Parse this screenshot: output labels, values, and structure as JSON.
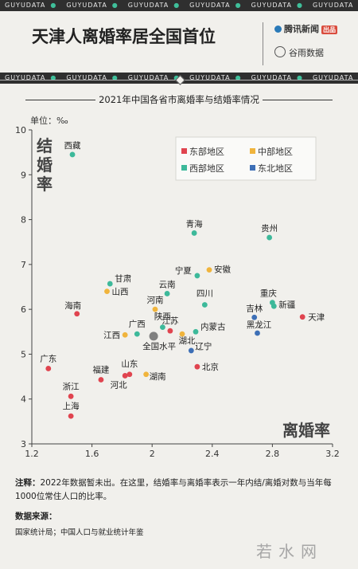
{
  "brand_band": [
    "GUYUDATA",
    "GUYUDATA",
    "GUYUDATA",
    "GUYUDATA",
    "GUYUDATA",
    "GUYUDATA"
  ],
  "header": {
    "title": "天津人离婚率居全国首位",
    "logo_tencent": "腾讯新闻",
    "logo_tencent_tag": "出品",
    "logo_guyu": "谷雨数据"
  },
  "colors": {
    "east": "#e0444f",
    "central": "#f0b43c",
    "west": "#3db99a",
    "northeast": "#3d6fb6",
    "national": "#808080"
  },
  "chart_data": {
    "type": "scatter",
    "title": "2021年中国各省市离婚率与结婚率情况",
    "unit": "单位：‰",
    "xlabel": "离婚率",
    "ylabel": "结婚率",
    "xlim": [
      1.2,
      3.2
    ],
    "ylim": [
      3,
      10
    ],
    "xticks": [
      "1.2",
      "1.6",
      "2",
      "2.4",
      "2.8",
      "3.2"
    ],
    "yticks": [
      "3",
      "4",
      "5",
      "6",
      "7",
      "8",
      "9",
      "10"
    ],
    "legend_position": "top-right",
    "legend": [
      {
        "key": "east",
        "label": "东部地区"
      },
      {
        "key": "central",
        "label": "中部地区"
      },
      {
        "key": "west",
        "label": "西部地区"
      },
      {
        "key": "northeast",
        "label": "东北地区"
      }
    ],
    "points": [
      {
        "name": "西藏",
        "x": 1.47,
        "y": 9.45,
        "region": "west"
      },
      {
        "name": "青海",
        "x": 2.28,
        "y": 7.7,
        "region": "west"
      },
      {
        "name": "贵州",
        "x": 2.78,
        "y": 7.6,
        "region": "west"
      },
      {
        "name": "宁夏",
        "x": 2.3,
        "y": 6.75,
        "region": "west"
      },
      {
        "name": "安徽",
        "x": 2.38,
        "y": 6.88,
        "region": "central"
      },
      {
        "name": "甘肃",
        "x": 1.72,
        "y": 6.57,
        "region": "west"
      },
      {
        "name": "山西",
        "x": 1.7,
        "y": 6.4,
        "region": "central"
      },
      {
        "name": "云南",
        "x": 2.1,
        "y": 6.35,
        "region": "west"
      },
      {
        "name": "河南",
        "x": 2.02,
        "y": 6.0,
        "region": "central"
      },
      {
        "name": "四川",
        "x": 2.35,
        "y": 6.1,
        "region": "west"
      },
      {
        "name": "重庆",
        "x": 2.8,
        "y": 6.15,
        "region": "west"
      },
      {
        "name": "新疆",
        "x": 2.81,
        "y": 6.07,
        "region": "west"
      },
      {
        "name": "海南",
        "x": 1.5,
        "y": 5.9,
        "region": "east"
      },
      {
        "name": "吉林",
        "x": 2.68,
        "y": 5.82,
        "region": "northeast"
      },
      {
        "name": "天津",
        "x": 3.0,
        "y": 5.83,
        "region": "east"
      },
      {
        "name": "陕西",
        "x": 2.07,
        "y": 5.6,
        "region": "west"
      },
      {
        "name": "广西",
        "x": 1.9,
        "y": 5.45,
        "region": "west"
      },
      {
        "name": "江苏",
        "x": 2.12,
        "y": 5.52,
        "region": "east"
      },
      {
        "name": "内蒙古",
        "x": 2.29,
        "y": 5.5,
        "region": "west"
      },
      {
        "name": "黑龙江",
        "x": 2.7,
        "y": 5.47,
        "region": "northeast"
      },
      {
        "name": "江西",
        "x": 1.82,
        "y": 5.43,
        "region": "central"
      },
      {
        "name": "全国水平",
        "x": 2.01,
        "y": 5.4,
        "region": "national"
      },
      {
        "name": "湖北",
        "x": 2.2,
        "y": 5.45,
        "region": "central"
      },
      {
        "name": "辽宁",
        "x": 2.26,
        "y": 5.08,
        "region": "northeast"
      },
      {
        "name": "北京",
        "x": 2.3,
        "y": 4.72,
        "region": "east"
      },
      {
        "name": "广东",
        "x": 1.31,
        "y": 4.68,
        "region": "east"
      },
      {
        "name": "山东",
        "x": 1.85,
        "y": 4.55,
        "region": "east"
      },
      {
        "name": "福建",
        "x": 1.66,
        "y": 4.43,
        "region": "east"
      },
      {
        "name": "河北",
        "x": 1.82,
        "y": 4.52,
        "region": "east"
      },
      {
        "name": "湖南",
        "x": 1.96,
        "y": 4.55,
        "region": "central"
      },
      {
        "name": "浙江",
        "x": 1.46,
        "y": 4.06,
        "region": "east"
      },
      {
        "name": "上海",
        "x": 1.46,
        "y": 3.62,
        "region": "east"
      }
    ]
  },
  "note": {
    "label": "注释：",
    "text": "2022年数据暂未出。在这里，结婚率与离婚率表示一年内结/离婚对数与当年每1000位常住人口的比率。"
  },
  "source": {
    "title": "数据来源：",
    "text": "国家统计局；中国人口与就业统计年鉴"
  },
  "watermark": "若水网"
}
